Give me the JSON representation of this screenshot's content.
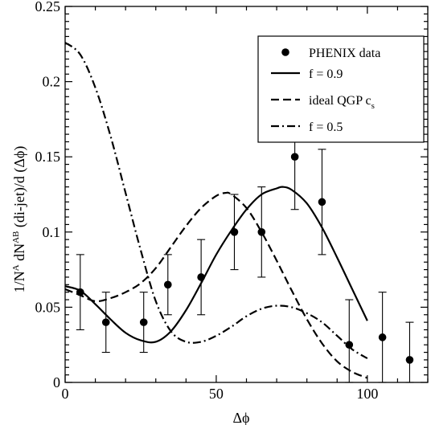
{
  "chart_data": {
    "type": "line",
    "xlabel": "Δϕ",
    "ylabel_parts": [
      "1/N",
      "A",
      " dN",
      "AB",
      " (di-jet)/d (Δϕ)"
    ],
    "xlim": [
      0,
      120
    ],
    "ylim": [
      0,
      0.25
    ],
    "x_ticks": [
      0,
      50,
      100
    ],
    "x_tick_labels": [
      "0",
      "50",
      "100"
    ],
    "y_ticks": [
      0,
      0.05,
      0.1,
      0.15,
      0.2,
      0.25
    ],
    "y_tick_labels": [
      "0",
      "0.05",
      "0.1",
      "0.15",
      "0.2",
      "0.25"
    ],
    "grid": false,
    "legend_position": "top-right",
    "legend": {
      "entry1": "PHENIX data",
      "entry2": "f = 0.9",
      "entry3_main": "ideal QGP c",
      "entry3_sub": "s",
      "entry4": "f = 0.5"
    },
    "series": [
      {
        "name": "PHENIX data",
        "kind": "points",
        "x": [
          5,
          13.5,
          26,
          34,
          45,
          56,
          65,
          76,
          85,
          94,
          105,
          114
        ],
        "y": [
          0.06,
          0.04,
          0.04,
          0.065,
          0.07,
          0.1,
          0.1,
          0.15,
          0.12,
          0.025,
          0.03,
          0.015
        ],
        "err_low": [
          0.025,
          0.02,
          0.02,
          0.02,
          0.025,
          0.025,
          0.03,
          0.035,
          0.035,
          0.025,
          0.03,
          0.015
        ],
        "err_high": [
          0.025,
          0.02,
          0.02,
          0.02,
          0.025,
          0.025,
          0.03,
          0.035,
          0.035,
          0.03,
          0.03,
          0.025
        ]
      },
      {
        "name": "f = 0.9",
        "kind": "line",
        "style": "solid",
        "x": [
          0,
          5,
          10,
          15,
          20,
          25,
          30,
          35,
          40,
          45,
          50,
          55,
          60,
          65,
          70,
          72,
          75,
          80,
          85,
          90,
          95,
          100
        ],
        "y": [
          0.064,
          0.061,
          0.052,
          0.042,
          0.033,
          0.028,
          0.027,
          0.034,
          0.048,
          0.066,
          0.085,
          0.101,
          0.115,
          0.125,
          0.129,
          0.13,
          0.128,
          0.119,
          0.103,
          0.083,
          0.062,
          0.041
        ]
      },
      {
        "name": "ideal QGP cs",
        "kind": "line",
        "style": "dashed",
        "x": [
          0,
          5,
          10,
          15,
          20,
          25,
          30,
          35,
          40,
          45,
          50,
          53,
          55,
          60,
          65,
          70,
          75,
          80,
          85,
          90,
          95,
          100
        ],
        "y": [
          0.062,
          0.058,
          0.054,
          0.056,
          0.06,
          0.066,
          0.076,
          0.09,
          0.104,
          0.116,
          0.124,
          0.126,
          0.125,
          0.116,
          0.1,
          0.081,
          0.061,
          0.042,
          0.026,
          0.014,
          0.007,
          0.003
        ]
      },
      {
        "name": "f = 0.5",
        "kind": "line",
        "style": "dashdot",
        "x": [
          0,
          5,
          10,
          15,
          20,
          25,
          30,
          35,
          40,
          45,
          50,
          55,
          60,
          65,
          70,
          75,
          80,
          85,
          90,
          95,
          100
        ],
        "y": [
          0.226,
          0.218,
          0.196,
          0.164,
          0.126,
          0.088,
          0.054,
          0.034,
          0.027,
          0.027,
          0.031,
          0.037,
          0.044,
          0.049,
          0.051,
          0.05,
          0.046,
          0.04,
          0.031,
          0.022,
          0.016
        ]
      }
    ]
  }
}
